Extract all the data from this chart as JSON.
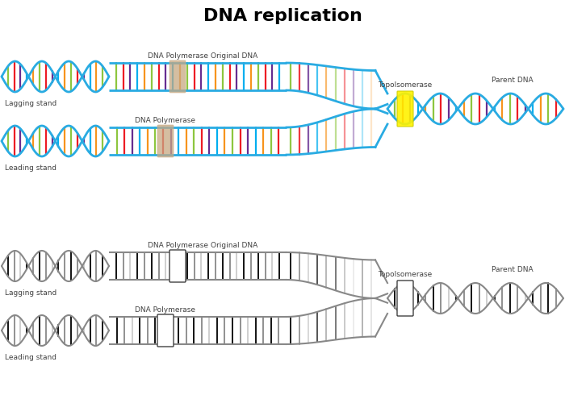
{
  "title": "DNA replication",
  "title_fontsize": 16,
  "title_fontweight": "bold",
  "background_color": "#ffffff",
  "labels": {
    "lagging_stand_top": "Lagging stand",
    "leading_stand_top": "Leading stand",
    "lagging_stand_bot": "Lagging stand",
    "leading_stand_bot": "Leading stand",
    "dna_poly_top_lagging": "DNA Polymerase",
    "dna_poly_top_leading": "DNA Polymerase",
    "original_dna_top": "Original DNA",
    "topo_top": "Topolsomerase",
    "parent_dna_top": "Parent DNA",
    "dna_poly_bot_lagging": "DNA Polymerase",
    "dna_poly_bot_leading": "DNA Polymerase",
    "original_dna_bot": "Original DNA",
    "topo_bot": "Topolsomerase",
    "parent_dna_bot": "Parent DNA"
  },
  "colors": {
    "blue": "#29ABE2",
    "cyan": "#00AEEF",
    "green": "#8DC63F",
    "orange": "#F7941D",
    "red": "#ED1C24",
    "purple": "#662D91",
    "yellow": "#FFF200",
    "tan": "#C8A882",
    "gray_dark": "#404040",
    "gray_mid": "#888888",
    "gray_light": "#CCCCCC",
    "white": "#ffffff",
    "black": "#000000"
  }
}
